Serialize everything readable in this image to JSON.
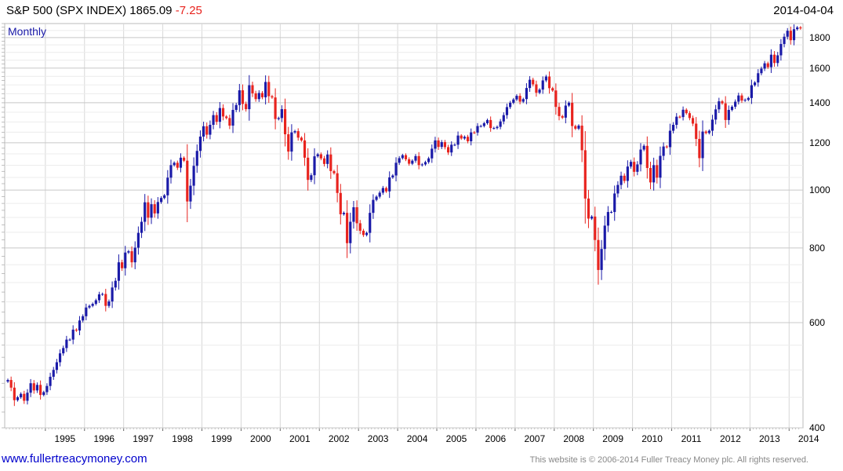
{
  "header": {
    "symbol": "S&P 500 (SPX INDEX)",
    "price": "1865.09",
    "change": "-7.25",
    "date": "2014-04-04"
  },
  "footer": {
    "website": "www.fullertreacymoney.com",
    "copyright": "This website is © 2006-2014 Fuller Treacy Money plc. All rights reserved."
  },
  "colors": {
    "up": "#1a1aa8",
    "down": "#e8231e",
    "grid": "#d8d8d8",
    "period_label": "#1a1aa8"
  },
  "chart_data": {
    "type": "candlestick",
    "title": "S&P 500 (SPX INDEX)",
    "period_label": "Monthly",
    "y_scale": "log",
    "ylim": [
      400,
      1900
    ],
    "y_ticks": [
      400,
      600,
      800,
      1000,
      1200,
      1400,
      1600,
      1800
    ],
    "x_tick_labels": [
      "1995",
      "1996",
      "1997",
      "1998",
      "1999",
      "2000",
      "2001",
      "2002",
      "2003",
      "2004",
      "2005",
      "2006",
      "2007",
      "2008",
      "2009",
      "2010",
      "2011",
      "2012",
      "2013",
      "2014"
    ],
    "x_range": [
      "1994-01",
      "2014-04"
    ],
    "x_unit": "month",
    "monthly_close": [
      {
        "year": 1994,
        "values": [
          481,
          467,
          445,
          450,
          456,
          444,
          458,
          475,
          462,
          472,
          454,
          459
        ]
      },
      {
        "year": 1995,
        "values": [
          470,
          487,
          500,
          515,
          533,
          544,
          562,
          562,
          584,
          582,
          605,
          615
        ]
      },
      {
        "year": 1996,
        "values": [
          636,
          640,
          645,
          654,
          669,
          670,
          640,
          651,
          687,
          705,
          757,
          740
        ]
      },
      {
        "year": 1997,
        "values": [
          786,
          790,
          757,
          801,
          848,
          885,
          954,
          899,
          947,
          914,
          955,
          970
        ]
      },
      {
        "year": 1998,
        "values": [
          980,
          1049,
          1101,
          1111,
          1090,
          1133,
          1120,
          957,
          1017,
          1098,
          1163,
          1229
        ]
      },
      {
        "year": 1999,
        "values": [
          1279,
          1238,
          1286,
          1335,
          1301,
          1372,
          1328,
          1320,
          1282,
          1362,
          1388,
          1469
        ]
      },
      {
        "year": 2000,
        "values": [
          1394,
          1366,
          1498,
          1452,
          1420,
          1454,
          1430,
          1517,
          1436,
          1429,
          1315,
          1320
        ]
      },
      {
        "year": 2001,
        "values": [
          1366,
          1240,
          1160,
          1249,
          1255,
          1224,
          1211,
          1133,
          1040,
          1059,
          1139,
          1148
        ]
      },
      {
        "year": 2002,
        "values": [
          1130,
          1106,
          1147,
          1076,
          1067,
          989,
          911,
          916,
          815,
          885,
          936,
          880
        ]
      },
      {
        "year": 2003,
        "values": [
          855,
          841,
          848,
          916,
          963,
          975,
          990,
          1008,
          995,
          1050,
          1058,
          1111
        ]
      },
      {
        "year": 2004,
        "values": [
          1131,
          1144,
          1126,
          1107,
          1120,
          1140,
          1101,
          1104,
          1114,
          1130,
          1173,
          1211
        ]
      },
      {
        "year": 2005,
        "values": [
          1181,
          1203,
          1180,
          1156,
          1191,
          1191,
          1234,
          1220,
          1228,
          1207,
          1249,
          1248
        ]
      },
      {
        "year": 2006,
        "values": [
          1280,
          1280,
          1294,
          1310,
          1270,
          1270,
          1276,
          1303,
          1335,
          1377,
          1400,
          1418
        ]
      },
      {
        "year": 2007,
        "values": [
          1438,
          1406,
          1420,
          1482,
          1530,
          1503,
          1455,
          1473,
          1526,
          1549,
          1481,
          1468
        ]
      },
      {
        "year": 2008,
        "values": [
          1378,
          1330,
          1322,
          1385,
          1400,
          1280,
          1267,
          1282,
          1166,
          968,
          896,
          903
        ]
      },
      {
        "year": 2009,
        "values": [
          825,
          735,
          797,
          872,
          919,
          919,
          987,
          1020,
          1057,
          1036,
          1095,
          1115
        ]
      },
      {
        "year": 2010,
        "values": [
          1073,
          1104,
          1169,
          1186,
          1089,
          1030,
          1101,
          1049,
          1141,
          1183,
          1180,
          1257
        ]
      },
      {
        "year": 2011,
        "values": [
          1286,
          1327,
          1325,
          1363,
          1345,
          1320,
          1292,
          1218,
          1131,
          1253,
          1246,
          1257
        ]
      },
      {
        "year": 2012,
        "values": [
          1312,
          1365,
          1408,
          1397,
          1310,
          1362,
          1379,
          1406,
          1440,
          1412,
          1416,
          1426
        ]
      },
      {
        "year": 2013,
        "values": [
          1498,
          1514,
          1569,
          1597,
          1630,
          1606,
          1685,
          1632,
          1681,
          1756,
          1806,
          1848
        ]
      },
      {
        "year": 2014,
        "values": [
          1782,
          1859,
          1872,
          1865
        ]
      }
    ]
  }
}
